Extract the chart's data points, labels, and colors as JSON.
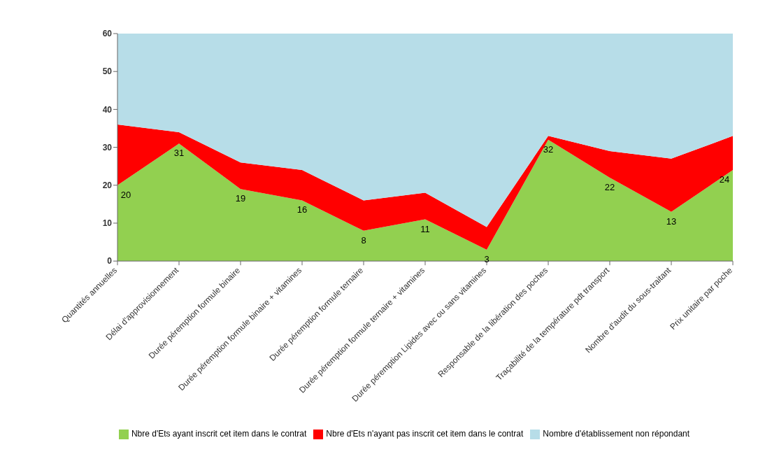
{
  "chart_data": {
    "type": "area",
    "stacked": true,
    "categories": [
      "Quantités annuelles",
      "Délai d'approvisionnement",
      "Durée péremption formule binaire",
      "Durée péremption formule binaire + vitamines",
      "Durée péremption formule ternaire",
      "Durée péremption formule ternaire + vitamines",
      "Durée péremption Lipides avec ou sans vitamines",
      "Responsable de la libération des poches",
      "Traçabilité de la température pdt transport",
      "Nombre d'audit du sous-traitant",
      "Prix unitaire par poche"
    ],
    "series": [
      {
        "name": "Nbre d'Ets ayant inscrit cet item dans le contrat",
        "color": "#92d050",
        "values": [
          20,
          31,
          19,
          16,
          8,
          11,
          3,
          32,
          22,
          13,
          24
        ],
        "value_labels": [
          "20",
          "31",
          "19",
          "16",
          "8",
          "11",
          "3",
          "32",
          "22",
          "13",
          "24"
        ]
      },
      {
        "name": "Nbre d'Ets n'ayant pas inscrit cet item dans le contrat",
        "color": "#ff0000",
        "values": [
          16,
          3,
          7,
          8,
          8,
          7,
          6,
          1,
          7,
          14,
          9
        ]
      },
      {
        "name": "Nombre d'établissement non répondant",
        "color": "#b7dde8",
        "values": [
          24,
          26,
          34,
          36,
          44,
          42,
          51,
          27,
          31,
          33,
          27
        ]
      }
    ],
    "ylim": [
      0,
      60
    ],
    "yticks": [
      0,
      10,
      20,
      30,
      40,
      50,
      60
    ],
    "grid": false,
    "legend": "bottom"
  }
}
